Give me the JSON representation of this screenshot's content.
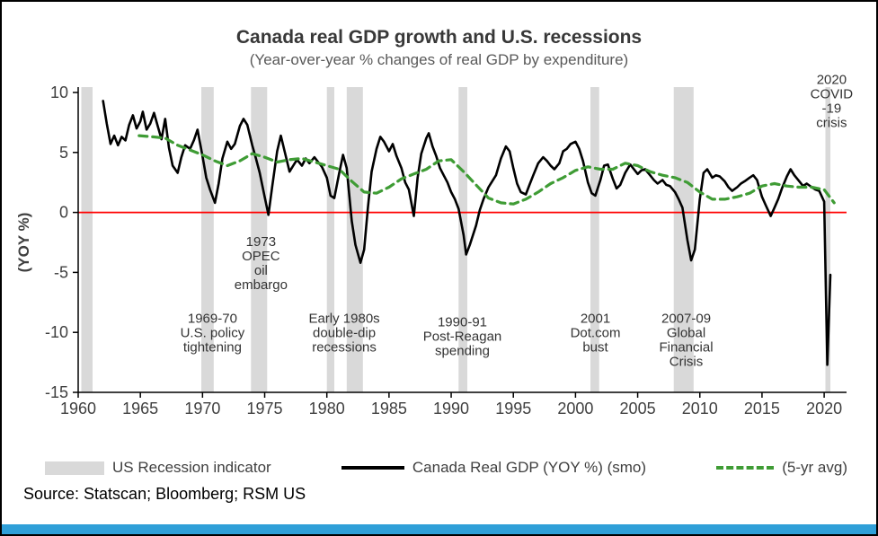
{
  "chart_data": {
    "type": "line",
    "title": "Canada real GDP growth and U.S. recessions",
    "subtitle": "(Year-over-year % changes of real GDP by expenditure)",
    "ylabel": "(YOY %)",
    "xlim": [
      1960,
      2021.8
    ],
    "ylim": [
      -15,
      10
    ],
    "x_ticks": [
      1960,
      1965,
      1970,
      1975,
      1980,
      1985,
      1990,
      1995,
      2000,
      2005,
      2010,
      2015,
      2020
    ],
    "y_ticks": [
      10,
      5,
      0,
      -5,
      -10,
      -15
    ],
    "zero_line_color": "#ff0000",
    "band_color": "#d9d9d9",
    "recession_bands": [
      [
        1960.25,
        1961.15
      ],
      [
        1969.9,
        1970.9
      ],
      [
        1973.9,
        1975.2
      ],
      [
        1980.0,
        1980.6
      ],
      [
        1981.6,
        1982.9
      ],
      [
        1990.6,
        1991.3
      ],
      [
        2001.2,
        2001.9
      ],
      [
        2007.9,
        2009.5
      ],
      [
        2020.1,
        2020.5
      ]
    ],
    "series": [
      {
        "name": "Canada Real GDP (YOY %) (smo)",
        "color": "#000000",
        "style": "solid",
        "points": [
          [
            1962.0,
            9.3
          ],
          [
            1962.3,
            7.4
          ],
          [
            1962.6,
            5.7
          ],
          [
            1962.9,
            6.4
          ],
          [
            1963.2,
            5.6
          ],
          [
            1963.5,
            6.3
          ],
          [
            1963.8,
            6.0
          ],
          [
            1964.1,
            7.3
          ],
          [
            1964.4,
            8.1
          ],
          [
            1964.7,
            7.0
          ],
          [
            1965.0,
            7.6
          ],
          [
            1965.2,
            8.4
          ],
          [
            1965.5,
            6.9
          ],
          [
            1965.8,
            7.4
          ],
          [
            1966.1,
            8.3
          ],
          [
            1966.4,
            7.2
          ],
          [
            1966.7,
            6.1
          ],
          [
            1967.0,
            7.8
          ],
          [
            1967.3,
            5.4
          ],
          [
            1967.6,
            3.9
          ],
          [
            1968.0,
            3.3
          ],
          [
            1968.3,
            4.6
          ],
          [
            1968.6,
            5.6
          ],
          [
            1969.0,
            5.3
          ],
          [
            1969.3,
            6.0
          ],
          [
            1969.6,
            6.9
          ],
          [
            1970.0,
            4.7
          ],
          [
            1970.3,
            2.9
          ],
          [
            1970.6,
            1.9
          ],
          [
            1971.0,
            0.8
          ],
          [
            1971.3,
            2.4
          ],
          [
            1971.6,
            4.5
          ],
          [
            1972.0,
            5.9
          ],
          [
            1972.3,
            5.3
          ],
          [
            1972.6,
            5.7
          ],
          [
            1973.0,
            7.2
          ],
          [
            1973.3,
            7.8
          ],
          [
            1973.6,
            7.3
          ],
          [
            1974.0,
            5.6
          ],
          [
            1974.3,
            4.5
          ],
          [
            1974.6,
            3.3
          ],
          [
            1975.0,
            1.3
          ],
          [
            1975.3,
            -0.2
          ],
          [
            1975.6,
            2.1
          ],
          [
            1976.0,
            5.1
          ],
          [
            1976.3,
            6.4
          ],
          [
            1976.6,
            5.1
          ],
          [
            1977.0,
            3.4
          ],
          [
            1977.3,
            3.9
          ],
          [
            1977.6,
            4.4
          ],
          [
            1978.0,
            3.9
          ],
          [
            1978.3,
            4.5
          ],
          [
            1978.6,
            4.1
          ],
          [
            1979.0,
            4.6
          ],
          [
            1979.3,
            4.2
          ],
          [
            1979.6,
            3.8
          ],
          [
            1980.0,
            2.9
          ],
          [
            1980.3,
            1.4
          ],
          [
            1980.6,
            1.2
          ],
          [
            1981.0,
            3.3
          ],
          [
            1981.3,
            4.8
          ],
          [
            1981.6,
            3.7
          ],
          [
            1982.0,
            -0.7
          ],
          [
            1982.3,
            -2.7
          ],
          [
            1982.7,
            -4.2
          ],
          [
            1983.0,
            -3.1
          ],
          [
            1983.3,
            0.4
          ],
          [
            1983.6,
            3.4
          ],
          [
            1984.0,
            5.3
          ],
          [
            1984.3,
            6.3
          ],
          [
            1984.6,
            5.9
          ],
          [
            1985.0,
            5.1
          ],
          [
            1985.3,
            5.7
          ],
          [
            1985.6,
            4.7
          ],
          [
            1986.0,
            3.7
          ],
          [
            1986.3,
            2.5
          ],
          [
            1986.6,
            1.9
          ],
          [
            1987.0,
            -0.3
          ],
          [
            1987.3,
            2.9
          ],
          [
            1987.6,
            4.9
          ],
          [
            1988.0,
            6.2
          ],
          [
            1988.2,
            6.6
          ],
          [
            1988.5,
            5.5
          ],
          [
            1988.8,
            4.7
          ],
          [
            1989.1,
            3.7
          ],
          [
            1989.4,
            3.1
          ],
          [
            1989.7,
            2.5
          ],
          [
            1990.0,
            1.7
          ],
          [
            1990.3,
            1.1
          ],
          [
            1990.6,
            0.3
          ],
          [
            1991.0,
            -1.9
          ],
          [
            1991.2,
            -3.5
          ],
          [
            1991.5,
            -2.7
          ],
          [
            1992.0,
            -1.1
          ],
          [
            1992.3,
            0.2
          ],
          [
            1992.6,
            1.1
          ],
          [
            1993.0,
            2.1
          ],
          [
            1993.3,
            2.6
          ],
          [
            1993.6,
            3.1
          ],
          [
            1994.0,
            4.5
          ],
          [
            1994.4,
            5.5
          ],
          [
            1994.7,
            5.1
          ],
          [
            1995.0,
            3.7
          ],
          [
            1995.3,
            2.4
          ],
          [
            1995.6,
            1.7
          ],
          [
            1996.0,
            1.5
          ],
          [
            1996.3,
            2.3
          ],
          [
            1996.6,
            3.1
          ],
          [
            1997.0,
            4.1
          ],
          [
            1997.4,
            4.6
          ],
          [
            1997.7,
            4.3
          ],
          [
            1998.0,
            3.9
          ],
          [
            1998.3,
            3.6
          ],
          [
            1998.7,
            4.1
          ],
          [
            1999.0,
            5.1
          ],
          [
            1999.3,
            5.3
          ],
          [
            1999.6,
            5.7
          ],
          [
            2000.0,
            5.9
          ],
          [
            2000.3,
            5.3
          ],
          [
            2000.6,
            4.3
          ],
          [
            2001.0,
            2.5
          ],
          [
            2001.3,
            1.6
          ],
          [
            2001.6,
            1.4
          ],
          [
            2002.0,
            2.7
          ],
          [
            2002.3,
            3.9
          ],
          [
            2002.6,
            4.0
          ],
          [
            2003.0,
            2.8
          ],
          [
            2003.3,
            2.0
          ],
          [
            2003.6,
            2.3
          ],
          [
            2004.0,
            3.3
          ],
          [
            2004.4,
            4.0
          ],
          [
            2004.7,
            3.6
          ],
          [
            2005.0,
            3.2
          ],
          [
            2005.3,
            3.5
          ],
          [
            2005.6,
            3.6
          ],
          [
            2006.0,
            3.1
          ],
          [
            2006.3,
            2.7
          ],
          [
            2006.6,
            2.4
          ],
          [
            2007.0,
            2.7
          ],
          [
            2007.3,
            2.3
          ],
          [
            2007.6,
            2.2
          ],
          [
            2008.0,
            1.7
          ],
          [
            2008.3,
            1.1
          ],
          [
            2008.6,
            0.4
          ],
          [
            2009.0,
            -2.3
          ],
          [
            2009.3,
            -4.0
          ],
          [
            2009.6,
            -3.1
          ],
          [
            2010.0,
            1.1
          ],
          [
            2010.3,
            3.3
          ],
          [
            2010.6,
            3.6
          ],
          [
            2011.0,
            2.9
          ],
          [
            2011.3,
            3.1
          ],
          [
            2011.6,
            3.0
          ],
          [
            2012.0,
            2.6
          ],
          [
            2012.3,
            2.1
          ],
          [
            2012.6,
            1.8
          ],
          [
            2013.0,
            2.1
          ],
          [
            2013.3,
            2.4
          ],
          [
            2013.6,
            2.6
          ],
          [
            2014.0,
            2.9
          ],
          [
            2014.3,
            3.1
          ],
          [
            2014.6,
            2.7
          ],
          [
            2015.0,
            1.3
          ],
          [
            2015.3,
            0.6
          ],
          [
            2015.7,
            -0.3
          ],
          [
            2016.0,
            0.4
          ],
          [
            2016.3,
            1.1
          ],
          [
            2016.6,
            2.0
          ],
          [
            2017.0,
            3.0
          ],
          [
            2017.3,
            3.6
          ],
          [
            2017.6,
            3.1
          ],
          [
            2018.0,
            2.6
          ],
          [
            2018.3,
            2.2
          ],
          [
            2018.6,
            2.4
          ],
          [
            2019.0,
            2.1
          ],
          [
            2019.3,
            1.9
          ],
          [
            2019.6,
            1.8
          ],
          [
            2020.0,
            0.9
          ],
          [
            2020.25,
            -12.7
          ],
          [
            2020.5,
            -5.2
          ]
        ]
      },
      {
        "name": "(5-yr avg)",
        "color": "#3f9c35",
        "style": "dashed",
        "points": [
          [
            1964.9,
            6.4
          ],
          [
            1966,
            6.3
          ],
          [
            1967,
            6.2
          ],
          [
            1968,
            5.6
          ],
          [
            1969,
            5.2
          ],
          [
            1970,
            4.8
          ],
          [
            1971,
            4.3
          ],
          [
            1972,
            3.9
          ],
          [
            1973,
            4.3
          ],
          [
            1974,
            4.9
          ],
          [
            1975,
            4.6
          ],
          [
            1976,
            4.2
          ],
          [
            1977,
            4.4
          ],
          [
            1978,
            4.5
          ],
          [
            1979,
            4.2
          ],
          [
            1980,
            3.9
          ],
          [
            1981,
            3.6
          ],
          [
            1982,
            2.6
          ],
          [
            1983,
            1.7
          ],
          [
            1984,
            1.6
          ],
          [
            1985,
            2.1
          ],
          [
            1986,
            2.8
          ],
          [
            1987,
            3.2
          ],
          [
            1988,
            3.6
          ],
          [
            1989,
            4.3
          ],
          [
            1990,
            4.4
          ],
          [
            1991,
            3.4
          ],
          [
            1992,
            2.3
          ],
          [
            1993,
            1.2
          ],
          [
            1994,
            0.8
          ],
          [
            1995,
            0.7
          ],
          [
            1996,
            1.1
          ],
          [
            1997,
            1.7
          ],
          [
            1998,
            2.4
          ],
          [
            1999,
            2.9
          ],
          [
            2000,
            3.5
          ],
          [
            2001,
            3.8
          ],
          [
            2002,
            3.6
          ],
          [
            2003,
            3.6
          ],
          [
            2004,
            4.1
          ],
          [
            2005,
            3.9
          ],
          [
            2006,
            3.4
          ],
          [
            2007,
            3.1
          ],
          [
            2008,
            2.9
          ],
          [
            2009,
            2.5
          ],
          [
            2010,
            1.7
          ],
          [
            2011,
            1.1
          ],
          [
            2012,
            1.1
          ],
          [
            2013,
            1.3
          ],
          [
            2014,
            1.6
          ],
          [
            2015,
            2.2
          ],
          [
            2016,
            2.4
          ],
          [
            2017,
            2.2
          ],
          [
            2018,
            2.1
          ],
          [
            2019,
            2.1
          ],
          [
            2020,
            1.9
          ],
          [
            2020.8,
            0.8
          ]
        ]
      }
    ],
    "annotations": [
      {
        "name": "opec-embargo",
        "x": 1974.7,
        "y": -2.8,
        "lines": [
          "1973",
          "OPEC",
          "oil",
          "embargo"
        ],
        "color": "#333333"
      },
      {
        "name": "us-policy-tightening",
        "x": 1970.8,
        "y": -9.2,
        "lines": [
          "1969-70",
          "U.S. policy",
          "tightening"
        ],
        "color": "#333333"
      },
      {
        "name": "double-dip-recessions",
        "x": 1981.4,
        "y": -9.2,
        "lines": [
          "Early 1980s",
          "double-dip",
          "recessions"
        ],
        "color": "#333333"
      },
      {
        "name": "post-reagan-spending",
        "x": 1990.9,
        "y": -9.5,
        "lines": [
          "1990-91",
          "Post-Reagan",
          "spending"
        ],
        "color": "#333333"
      },
      {
        "name": "dotcom-bust",
        "x": 2001.6,
        "y": -9.2,
        "lines": [
          "2001",
          "Dot.com",
          "bust"
        ],
        "color": "#333333"
      },
      {
        "name": "global-financial-crisis",
        "x": 2008.9,
        "y": -9.2,
        "lines": [
          "2007-09",
          "Global",
          "Financial",
          "Crisis"
        ],
        "color": "#333333"
      },
      {
        "name": "covid-crisis",
        "x": 2020.6,
        "y": 10.7,
        "lines": [
          "2020",
          "COVID",
          "-19",
          "crisis"
        ],
        "color": "#2586c9"
      }
    ]
  },
  "legend": {
    "items": [
      {
        "label": "US Recession indicator",
        "swatch": "band"
      },
      {
        "label": "Canada Real GDP (YOY %) (smo)",
        "swatch": "solid-line"
      },
      {
        "label": "(5-yr avg)",
        "swatch": "dashed-line"
      }
    ]
  },
  "source": "Source: Statscan; Bloomberg; RSM US",
  "footer_bar_color": "#2f9fd8"
}
